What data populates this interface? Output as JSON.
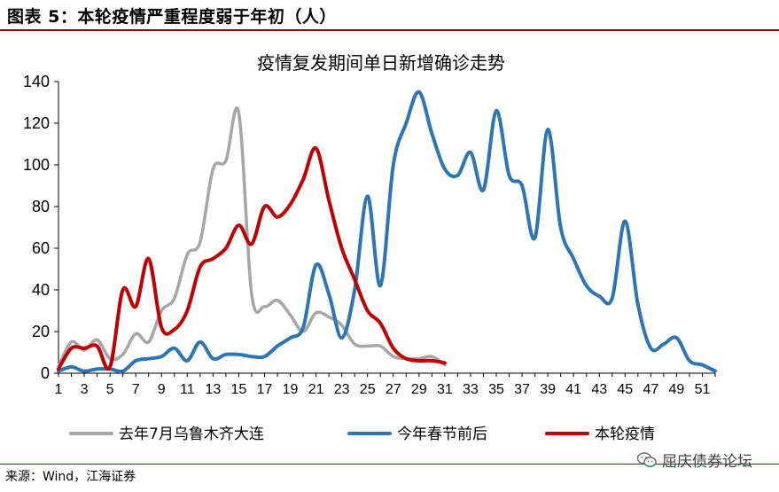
{
  "figure": {
    "title": "图表 5：本轮疫情严重程度弱于年初（人）",
    "source": "来源：Wind，江海证券",
    "watermark": "屈庆债券论坛"
  },
  "colors": {
    "rule": "#a00000",
    "series_gray": "#a6a6a6",
    "series_blue": "#2e75b6",
    "series_red": "#c00000"
  },
  "chart_data": {
    "type": "line",
    "title": "疫情复发期间单日新增确诊走势",
    "xlabel": "",
    "ylabel": "",
    "ylim": [
      0,
      140
    ],
    "yticks": [
      0,
      20,
      40,
      60,
      80,
      100,
      120,
      140
    ],
    "xlim": [
      1,
      52
    ],
    "xticks": [
      1,
      3,
      5,
      7,
      9,
      11,
      13,
      15,
      17,
      19,
      21,
      23,
      25,
      27,
      29,
      31,
      33,
      35,
      37,
      39,
      41,
      43,
      45,
      47,
      49,
      51
    ],
    "grid": false,
    "legend_position": "bottom",
    "series": [
      {
        "name": "去年7月乌鲁木齐大连",
        "color": "#a6a6a6",
        "x": [
          1,
          2,
          3,
          4,
          5,
          6,
          7,
          8,
          9,
          10,
          11,
          12,
          13,
          14,
          15,
          16,
          17,
          18,
          19,
          20,
          21,
          22,
          23,
          24,
          25,
          26,
          27,
          28,
          29,
          30,
          31
        ],
        "values": [
          3,
          15,
          11,
          16,
          7,
          9,
          19,
          15,
          30,
          36,
          57,
          63,
          98,
          102,
          125,
          38,
          32,
          35,
          28,
          20,
          29,
          27,
          23,
          14,
          13,
          13,
          8,
          7,
          7,
          8,
          4
        ]
      },
      {
        "name": "今年春节前后",
        "color": "#2e75b6",
        "x": [
          1,
          2,
          3,
          4,
          5,
          6,
          7,
          8,
          9,
          10,
          11,
          12,
          13,
          14,
          15,
          16,
          17,
          18,
          19,
          20,
          21,
          22,
          23,
          24,
          25,
          26,
          27,
          28,
          29,
          30,
          31,
          32,
          33,
          34,
          35,
          36,
          37,
          38,
          39,
          40,
          41,
          42,
          43,
          44,
          45,
          46,
          47,
          48,
          49,
          50,
          51,
          52
        ],
        "values": [
          1,
          3,
          1,
          2,
          2,
          1,
          6,
          7,
          8,
          12,
          6,
          15,
          7,
          9,
          9,
          8,
          8,
          13,
          17,
          22,
          52,
          38,
          17,
          40,
          85,
          42,
          100,
          120,
          135,
          115,
          98,
          95,
          106,
          88,
          126,
          95,
          90,
          65,
          117,
          70,
          55,
          42,
          37,
          36,
          73,
          33,
          12,
          14,
          17,
          6,
          4,
          1
        ]
      },
      {
        "name": "本轮疫情",
        "color": "#c00000",
        "x": [
          1,
          2,
          3,
          4,
          5,
          6,
          7,
          8,
          9,
          10,
          11,
          12,
          13,
          14,
          15,
          16,
          17,
          18,
          19,
          20,
          21,
          22,
          23,
          24,
          25,
          26,
          27,
          28,
          29,
          30,
          31
        ],
        "values": [
          2,
          12,
          12,
          13,
          3,
          40,
          32,
          55,
          22,
          21,
          30,
          51,
          55,
          60,
          71,
          62,
          80,
          75,
          81,
          93,
          108,
          83,
          60,
          45,
          30,
          24,
          12,
          7,
          6,
          6,
          5
        ]
      }
    ]
  }
}
